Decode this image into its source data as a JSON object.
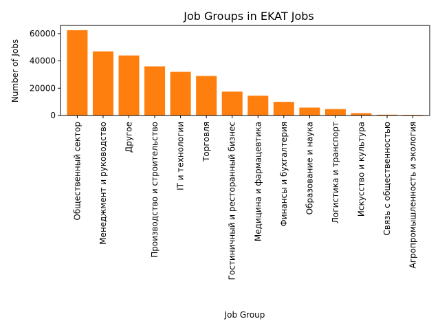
{
  "chart_data": {
    "type": "bar",
    "title": "Job Groups in EKAT Jobs",
    "xlabel": "Job Group",
    "ylabel": "Number of Jobs",
    "ylim": [
      0,
      66000
    ],
    "yticks": [
      0,
      20000,
      40000,
      60000
    ],
    "grid": false,
    "bar_color": "#ff7f0e",
    "categories": [
      "Общественный сектор",
      "Менеджмент и руководство",
      "Другое",
      "Производство и строительство",
      "IT и технологии",
      "Торговля",
      "Гостиничный и ресторанный бизнес",
      "Медицина и фармацевтика",
      "Финансы и бухгалтерия",
      "Образование и наука",
      "Логистика и транспорт",
      "Искусство и культура",
      "Связь с общественностью",
      "Агропромышленность и экология"
    ],
    "values": [
      62500,
      47000,
      44000,
      36000,
      32000,
      29000,
      17500,
      14500,
      10000,
      5800,
      4700,
      1700,
      600,
      500
    ]
  }
}
